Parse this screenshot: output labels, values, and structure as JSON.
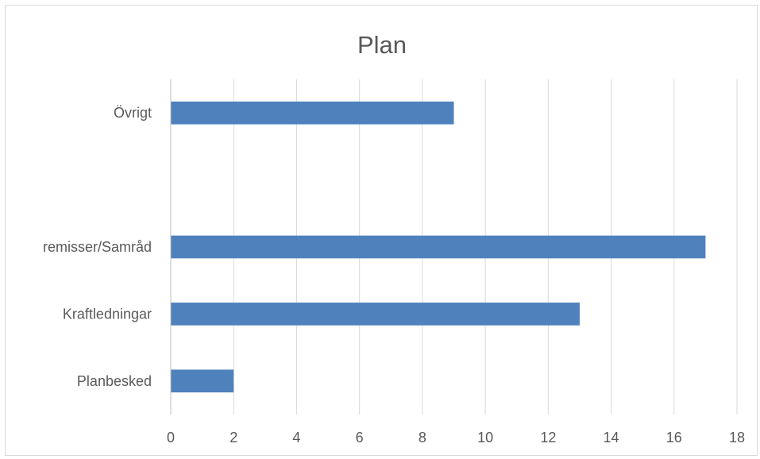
{
  "chart_data": {
    "type": "bar",
    "orientation": "horizontal",
    "title": "Plan",
    "categories": [
      "Övrigt",
      "",
      "remisser/Samråd",
      "Kraftledningar",
      "Planbesked"
    ],
    "values": [
      9,
      null,
      17,
      13,
      2
    ],
    "xlabel": "",
    "ylabel": "",
    "xlim": [
      0,
      18
    ],
    "xticks": [
      "0",
      "2",
      "4",
      "6",
      "8",
      "10",
      "12",
      "14",
      "16",
      "18"
    ],
    "grid": "vertical",
    "legend": "none",
    "colors": {
      "bar": "#4f81bd",
      "grid": "#d9d9d9",
      "text": "#595959"
    }
  }
}
